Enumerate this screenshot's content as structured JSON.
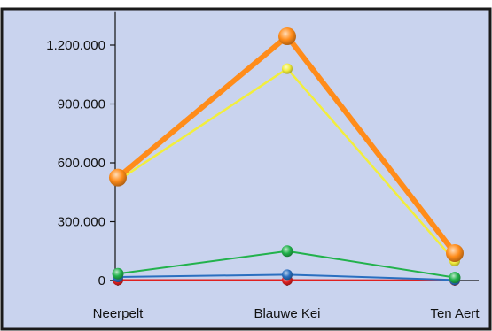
{
  "chart_data": {
    "type": "line",
    "categories": [
      "Neerpelt",
      "Blauwe Kei",
      "Ten Aert"
    ],
    "ylim": [
      0,
      1350000
    ],
    "yticks": [
      0,
      300000,
      600000,
      900000,
      1200000
    ],
    "ytick_labels": [
      "0",
      "300.000",
      "600.000",
      "900.000",
      "1.200.000"
    ],
    "grid": false,
    "legend": "none",
    "background_color": "#c9d3ee",
    "frame_color": "#1a1a1a",
    "series": [
      {
        "color": "#ff8c1a",
        "values": [
          525000,
          1245000,
          140000
        ]
      },
      {
        "color": "#f2ee3c",
        "values": [
          510000,
          1080000,
          100000
        ]
      },
      {
        "color": "#22b24c",
        "values": [
          35000,
          150000,
          15000
        ]
      },
      {
        "color": "#2a6fc0",
        "values": [
          18000,
          30000,
          3000
        ]
      },
      {
        "color": "#e02020",
        "values": [
          2000,
          2000,
          1000
        ]
      }
    ]
  }
}
